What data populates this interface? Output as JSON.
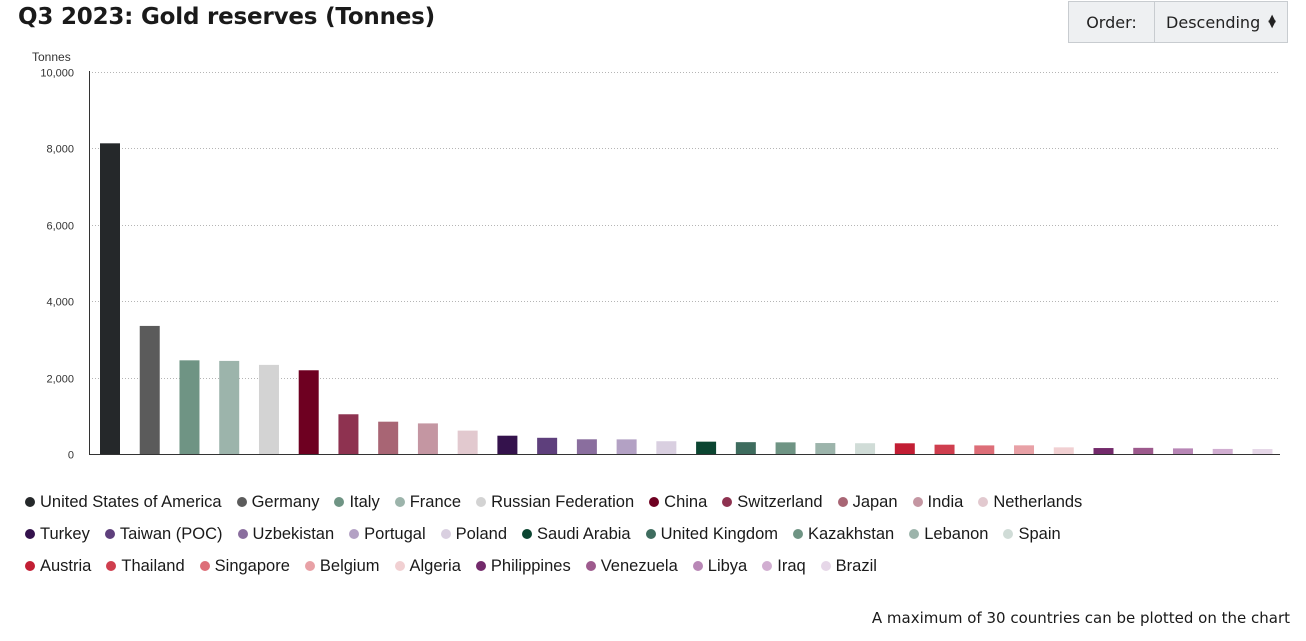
{
  "header": {
    "title": "Q3 2023: Gold reserves (Tonnes)",
    "order_label": "Order:",
    "order_value": "Descending",
    "order_icon": "sort-arrows-icon"
  },
  "footnote": "A maximum of 30 countries can be plotted on the chart",
  "chart_data": {
    "type": "bar",
    "title": "Q3 2023: Gold reserves (Tonnes)",
    "ylabel": "Tonnes",
    "xlabel": "",
    "ylim": [
      0,
      10000
    ],
    "yticks": [
      0,
      2000,
      4000,
      6000,
      8000,
      10000
    ],
    "ytick_labels": [
      "0",
      "2,000",
      "4,000",
      "6,000",
      "8,000",
      "10,000"
    ],
    "grid": true,
    "legend_position": "bottom",
    "categories": [
      "United States of America",
      "Germany",
      "Italy",
      "France",
      "Russian Federation",
      "China",
      "Switzerland",
      "Japan",
      "India",
      "Netherlands",
      "Turkey",
      "Taiwan (POC)",
      "Uzbekistan",
      "Portugal",
      "Poland",
      "Saudi Arabia",
      "United Kingdom",
      "Kazakhstan",
      "Lebanon",
      "Spain",
      "Austria",
      "Thailand",
      "Singapore",
      "Belgium",
      "Algeria",
      "Philippines",
      "Venezuela",
      "Libya",
      "Iraq",
      "Brazil"
    ],
    "values": [
      8133,
      3353,
      2452,
      2437,
      2333,
      2192,
      1040,
      846,
      801,
      612,
      479,
      424,
      385,
      383,
      334,
      323,
      310,
      305,
      287,
      282,
      280,
      244,
      225,
      227,
      174,
      156,
      161,
      147,
      133,
      130
    ],
    "colors": [
      "#25282a",
      "#5b5b5b",
      "#6f9484",
      "#9cb4ab",
      "#d3d3d3",
      "#6e0021",
      "#8e3250",
      "#a86574",
      "#c496a2",
      "#e2c9cf",
      "#34124c",
      "#5e3f7c",
      "#8a6e9e",
      "#b3a1c4",
      "#d9cfe0",
      "#0b4531",
      "#3e6c5e",
      "#6f9484",
      "#9cb4ab",
      "#d0dcd7",
      "#c21e34",
      "#cf3e4e",
      "#dd6e78",
      "#e8a1a6",
      "#f1d0d2",
      "#732a6b",
      "#9d5a8d",
      "#b887b6",
      "#d1aed1",
      "#e6d7e8"
    ]
  }
}
